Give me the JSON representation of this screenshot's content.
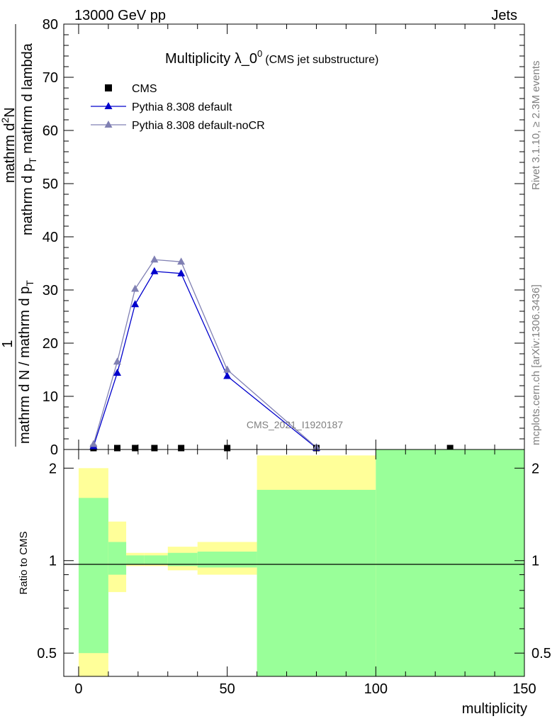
{
  "header": {
    "left": "13000 GeV pp",
    "right": "Jets"
  },
  "side": {
    "rivet": "Rivet 3.1.10, ≥ 2.3M events",
    "mcplots": "mcplots.cern.ch [arXiv:1306.3436]"
  },
  "chart_data": {
    "type": "line",
    "title_main": "Multiplicity λ_0",
    "title_sup": "0",
    "title_sub": "(CMS jet substructure)",
    "watermark": "CMS_2021_I1920187",
    "ylabel_num": "1",
    "ylabel_den": "mathrm d N / mathrm d p",
    "ylabel_den_sub": "T",
    "ylabel_num2": "mathrm d",
    "ylabel_num2_sup": "2",
    "ylabel_num2_tail": "N",
    "ylabel_den2": "mathrm d p",
    "ylabel_den2_sub": "T",
    "ylabel_den2_tail": " mathrm d lambda",
    "xlabel": "multiplicity",
    "ratio_ylabel": "Ratio to CMS",
    "xlim": [
      -5,
      150
    ],
    "ylim": [
      0,
      80
    ],
    "xticks": [
      "0",
      "50",
      "100",
      "150"
    ],
    "yticks": [
      "10",
      "20",
      "30",
      "40",
      "50",
      "60",
      "70",
      "80"
    ],
    "ratio_ylim_log": [
      0.42,
      2.3
    ],
    "ratio_yticks": [
      "0.5",
      "1",
      "2"
    ],
    "legend": [
      "CMS",
      "Pythia 8.308 default",
      "Pythia 8.308 default-noCR"
    ],
    "series": [
      {
        "name": "CMS",
        "color": "#000000",
        "marker": "square",
        "x": [
          5,
          13,
          19,
          25.5,
          34.5,
          50,
          80,
          125
        ],
        "y": [
          0.1,
          0.15,
          0.15,
          0.15,
          0.15,
          0.15,
          0.05,
          0.05
        ]
      },
      {
        "name": "Pythia 8.308 default",
        "color": "#0000cc",
        "marker": "triangle",
        "x": [
          5,
          13,
          19,
          25.5,
          34.5,
          50,
          80
        ],
        "y": [
          0.6,
          14.4,
          27.3,
          33.5,
          33.1,
          13.8,
          0.3
        ]
      },
      {
        "name": "Pythia 8.308 default-noCR",
        "color": "#8080b3",
        "marker": "triangle",
        "x": [
          5,
          13,
          19,
          25.5,
          34.5,
          50,
          80
        ],
        "y": [
          1.0,
          16.5,
          30.2,
          35.7,
          35.3,
          15.0,
          0.4
        ]
      }
    ],
    "ratio_bands": [
      {
        "x0": 0,
        "x1": 10,
        "green": [
          0.5,
          1.6
        ],
        "yellow": [
          0.42,
          2.0
        ]
      },
      {
        "x0": 10,
        "x1": 16,
        "green": [
          0.9,
          1.15
        ],
        "yellow": [
          0.79,
          1.34
        ]
      },
      {
        "x0": 16,
        "x1": 22,
        "green": [
          0.97,
          1.04
        ],
        "yellow": [
          0.96,
          1.06
        ]
      },
      {
        "x0": 22,
        "x1": 30,
        "green": [
          0.97,
          1.04
        ],
        "yellow": [
          0.96,
          1.06
        ]
      },
      {
        "x0": 30,
        "x1": 40,
        "green": [
          0.96,
          1.06
        ],
        "yellow": [
          0.93,
          1.11
        ]
      },
      {
        "x0": 40,
        "x1": 60,
        "green": [
          0.95,
          1.07
        ],
        "yellow": [
          0.9,
          1.15
        ]
      },
      {
        "x0": 60,
        "x1": 100,
        "green": [
          0.38,
          1.7
        ],
        "yellow": [
          0.38,
          2.2
        ]
      },
      {
        "x0": 100,
        "x1": 150,
        "green": [
          0.38,
          2.4
        ],
        "yellow": [
          0.38,
          2.4
        ]
      }
    ]
  }
}
